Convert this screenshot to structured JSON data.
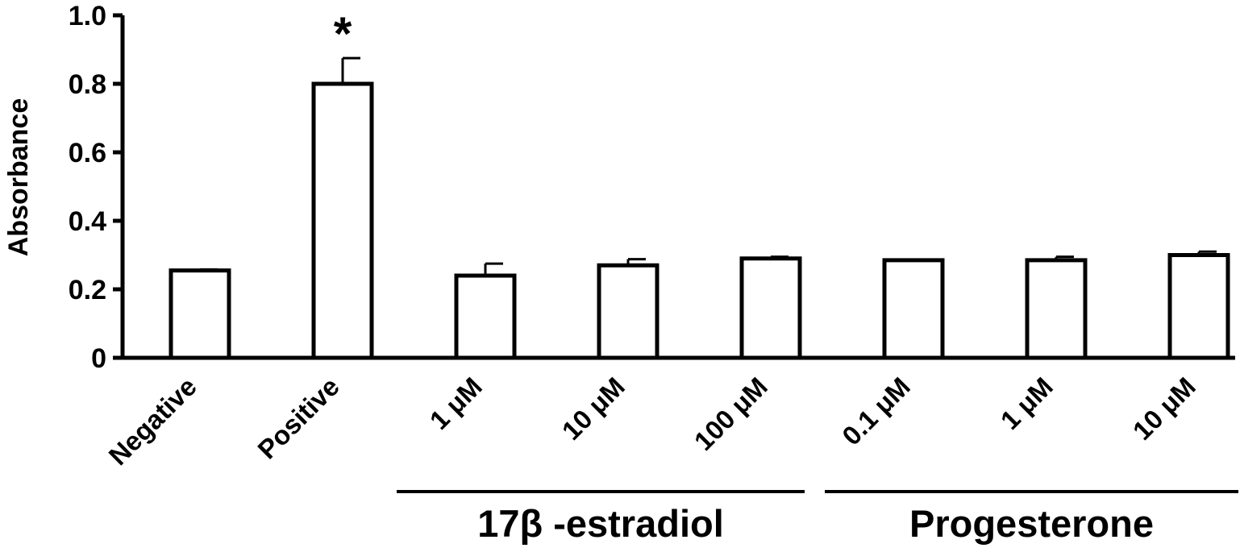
{
  "chart_data": {
    "type": "bar",
    "ylabel": "Absorbance",
    "xlabel": "",
    "ylim": [
      0,
      1.0
    ],
    "yticks": [
      {
        "value": 0,
        "label": "0"
      },
      {
        "value": 0.2,
        "label": "0.2"
      },
      {
        "value": 0.4,
        "label": "0.4"
      },
      {
        "value": 0.6,
        "label": "0.6"
      },
      {
        "value": 0.8,
        "label": "0.8"
      },
      {
        "value": 1.0,
        "label": "1.0"
      }
    ],
    "grid": false,
    "bar_fill": "#ffffff",
    "bar_stroke": "#000000",
    "categories": [
      "Negative",
      "Positive",
      "1 μM",
      "10 μM",
      "100 μM",
      "0.1 μM",
      "1 μM",
      "10 μM"
    ],
    "values": [
      0.255,
      0.8,
      0.24,
      0.27,
      0.29,
      0.285,
      0.285,
      0.3
    ],
    "errors": [
      0.003,
      0.075,
      0.035,
      0.018,
      0.005,
      0.0,
      0.01,
      0.01
    ],
    "annotations": [
      {
        "category_index": 1,
        "text": "*"
      }
    ],
    "groups": [
      {
        "label": "17β -estradiol",
        "category_indices": [
          2,
          3,
          4
        ]
      },
      {
        "label": "Progesterone",
        "category_indices": [
          5,
          6,
          7
        ]
      }
    ]
  }
}
